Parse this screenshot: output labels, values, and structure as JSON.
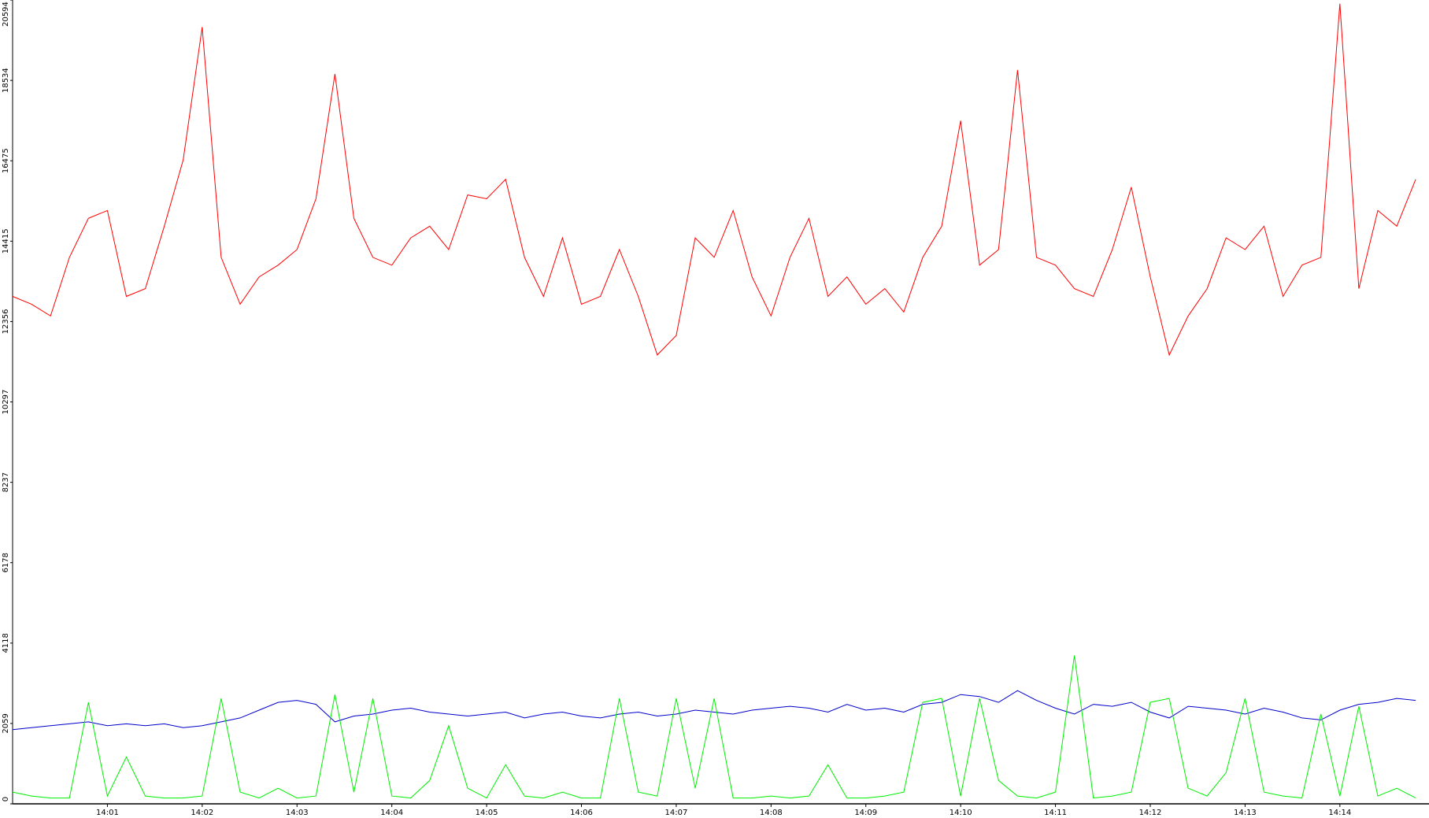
{
  "chart_data": {
    "type": "line",
    "x": [
      0,
      0.2,
      0.4,
      0.6,
      0.8,
      1,
      1.2,
      1.4,
      1.6,
      1.8,
      2,
      2.2,
      2.4,
      2.6,
      2.8,
      3,
      3.2,
      3.4,
      3.6,
      3.8,
      4,
      4.2,
      4.4,
      4.6,
      4.8,
      5,
      5.2,
      5.4,
      5.6,
      5.8,
      6,
      6.2,
      6.4,
      6.6,
      6.8,
      7,
      7.2,
      7.4,
      7.6,
      7.8,
      8,
      8.2,
      8.4,
      8.6,
      8.8,
      9,
      9.2,
      9.4,
      9.6,
      9.8,
      10,
      10.2,
      10.4,
      10.6,
      10.8,
      11,
      11.2,
      11.4,
      11.6,
      11.8,
      12,
      12.2,
      12.4,
      12.6,
      12.8,
      13,
      13.2,
      13.4,
      13.6,
      13.8,
      14,
      14.2,
      14.4,
      14.6,
      14.8
    ],
    "series": [
      {
        "color": "#ff0000",
        "values": [
          13000,
          12800,
          12500,
          14000,
          15000,
          15200,
          13000,
          13200,
          14800,
          16500,
          19900,
          14000,
          12800,
          13500,
          13800,
          14200,
          15500,
          18700,
          15000,
          14000,
          13800,
          14500,
          14800,
          14200,
          15600,
          15500,
          16000,
          14000,
          13000,
          14500,
          12800,
          13000,
          14200,
          13000,
          11500,
          12000,
          14500,
          14000,
          15200,
          13500,
          12500,
          14000,
          15000,
          13000,
          13500,
          12800,
          13200,
          12600,
          14000,
          14800,
          17500,
          13800,
          14200,
          18800,
          14000,
          13800,
          13200,
          13000,
          14200,
          15800,
          13500,
          11500,
          12500,
          13200,
          14500,
          14200,
          14800,
          13000,
          13800,
          14000,
          20500,
          13200,
          15200,
          14800,
          16000
        ]
      },
      {
        "color": "#0000cc",
        "values": [
          1900,
          1950,
          2000,
          2050,
          2100,
          2000,
          2050,
          2000,
          2050,
          1950,
          2000,
          2100,
          2200,
          2400,
          2600,
          2650,
          2550,
          2100,
          2250,
          2300,
          2400,
          2450,
          2350,
          2300,
          2250,
          2300,
          2350,
          2200,
          2300,
          2350,
          2250,
          2200,
          2300,
          2350,
          2250,
          2300,
          2400,
          2350,
          2300,
          2400,
          2450,
          2500,
          2450,
          2350,
          2550,
          2400,
          2450,
          2350,
          2550,
          2600,
          2800,
          2750,
          2600,
          2900,
          2650,
          2450,
          2300,
          2550,
          2500,
          2600,
          2350,
          2200,
          2500,
          2450,
          2400,
          2300,
          2450,
          2350,
          2200,
          2150,
          2400,
          2550,
          2600,
          2700,
          2650
        ]
      },
      {
        "color": "#00ee00",
        "values": [
          300,
          200,
          150,
          150,
          2600,
          200,
          1200,
          200,
          150,
          150,
          200,
          2700,
          300,
          150,
          400,
          150,
          200,
          2800,
          300,
          2700,
          200,
          150,
          600,
          2000,
          400,
          150,
          1000,
          200,
          150,
          300,
          150,
          150,
          2700,
          300,
          200,
          2700,
          400,
          2700,
          150,
          150,
          200,
          150,
          200,
          1000,
          150,
          150,
          200,
          300,
          2600,
          2700,
          200,
          2700,
          600,
          200,
          150,
          300,
          3800,
          150,
          200,
          300,
          2600,
          2700,
          400,
          200,
          800,
          2700,
          300,
          200,
          150,
          2300,
          200,
          2500,
          200,
          400,
          150
        ]
      }
    ],
    "xlim": [
      0,
      14.94
    ],
    "xticks": [
      {
        "value": 1,
        "label": "14:01"
      },
      {
        "value": 2,
        "label": "14:02"
      },
      {
        "value": 3,
        "label": "14:03"
      },
      {
        "value": 4,
        "label": "14:04"
      },
      {
        "value": 5,
        "label": "14:05"
      },
      {
        "value": 6,
        "label": "14:06"
      },
      {
        "value": 7,
        "label": "14:07"
      },
      {
        "value": 8,
        "label": "14:08"
      },
      {
        "value": 9,
        "label": "14:09"
      },
      {
        "value": 10,
        "label": "14:10"
      },
      {
        "value": 11,
        "label": "14:11"
      },
      {
        "value": 12,
        "label": "14:12"
      },
      {
        "value": 13,
        "label": "14:13"
      },
      {
        "value": 14,
        "label": "14:14"
      }
    ],
    "ylim": [
      0,
      20594
    ],
    "yticks": [
      0,
      2059,
      4118,
      6178,
      8237,
      10297,
      12356,
      14415,
      16475,
      18534,
      20594
    ],
    "grid": false
  }
}
